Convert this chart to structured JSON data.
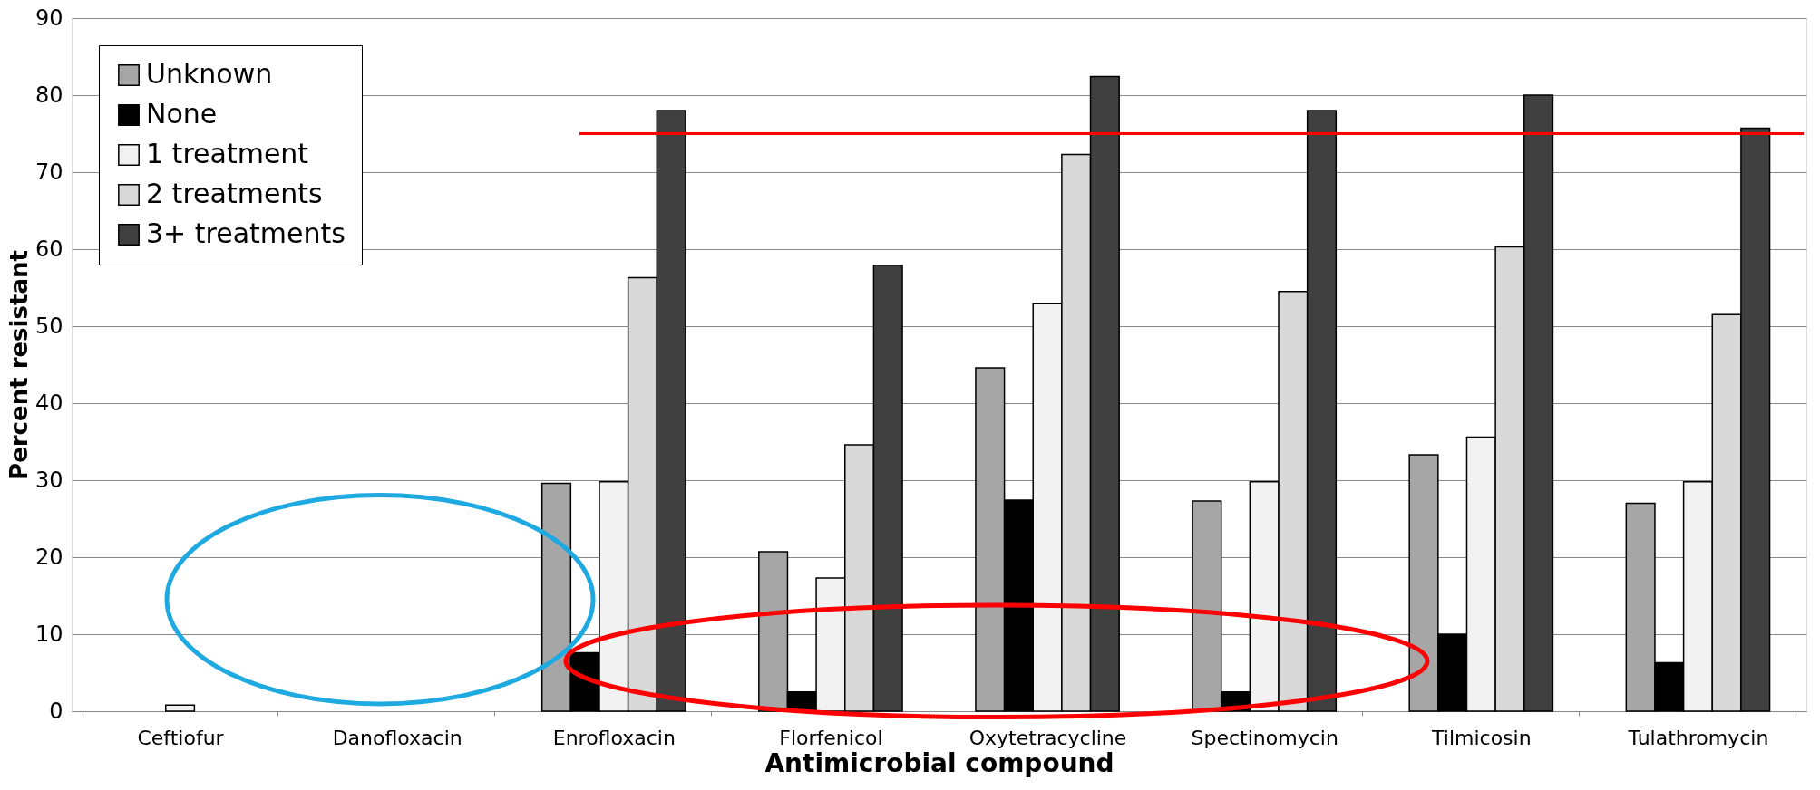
{
  "chart_data": {
    "type": "bar",
    "xlabel": "Antimicrobial compound",
    "ylabel": "Percent resistant",
    "categories": [
      "Ceftiofur",
      "Danofloxacin",
      "Enrofloxacin",
      "Florfenicol",
      "Oxytetracycline",
      "Spectinomycin",
      "Tilmicosin",
      "Tulathromycin"
    ],
    "series": [
      {
        "name": "Unknown",
        "color": "#a6a6a6",
        "values": [
          null,
          null,
          29.6,
          20.7,
          44.6,
          27.3,
          33.3,
          27
        ]
      },
      {
        "name": "None",
        "color": "#000000",
        "values": [
          null,
          null,
          7.6,
          2.5,
          27.4,
          2.5,
          10,
          6.3
        ]
      },
      {
        "name": "1 treatment",
        "color": "#f2f2f2",
        "values": [
          0.8,
          null,
          29.8,
          17.3,
          52.9,
          29.8,
          35.6,
          29.8
        ]
      },
      {
        "name": "2 treatments",
        "color": "#d9d9d9",
        "values": [
          null,
          null,
          56.3,
          34.6,
          72.3,
          54.5,
          60.3,
          51.5
        ]
      },
      {
        "name": "3+ treatments",
        "color": "#404040",
        "values": [
          null,
          null,
          78,
          57.9,
          82.4,
          78,
          80,
          75.7
        ]
      }
    ],
    "ylim": [
      0,
      90
    ],
    "yticks": [
      0,
      10,
      20,
      30,
      40,
      50,
      60,
      70,
      80,
      90
    ],
    "ref_lines": [
      {
        "axis": "y",
        "value": 75,
        "color": "#ff0000"
      }
    ],
    "grid": "y",
    "legend": "top left"
  }
}
